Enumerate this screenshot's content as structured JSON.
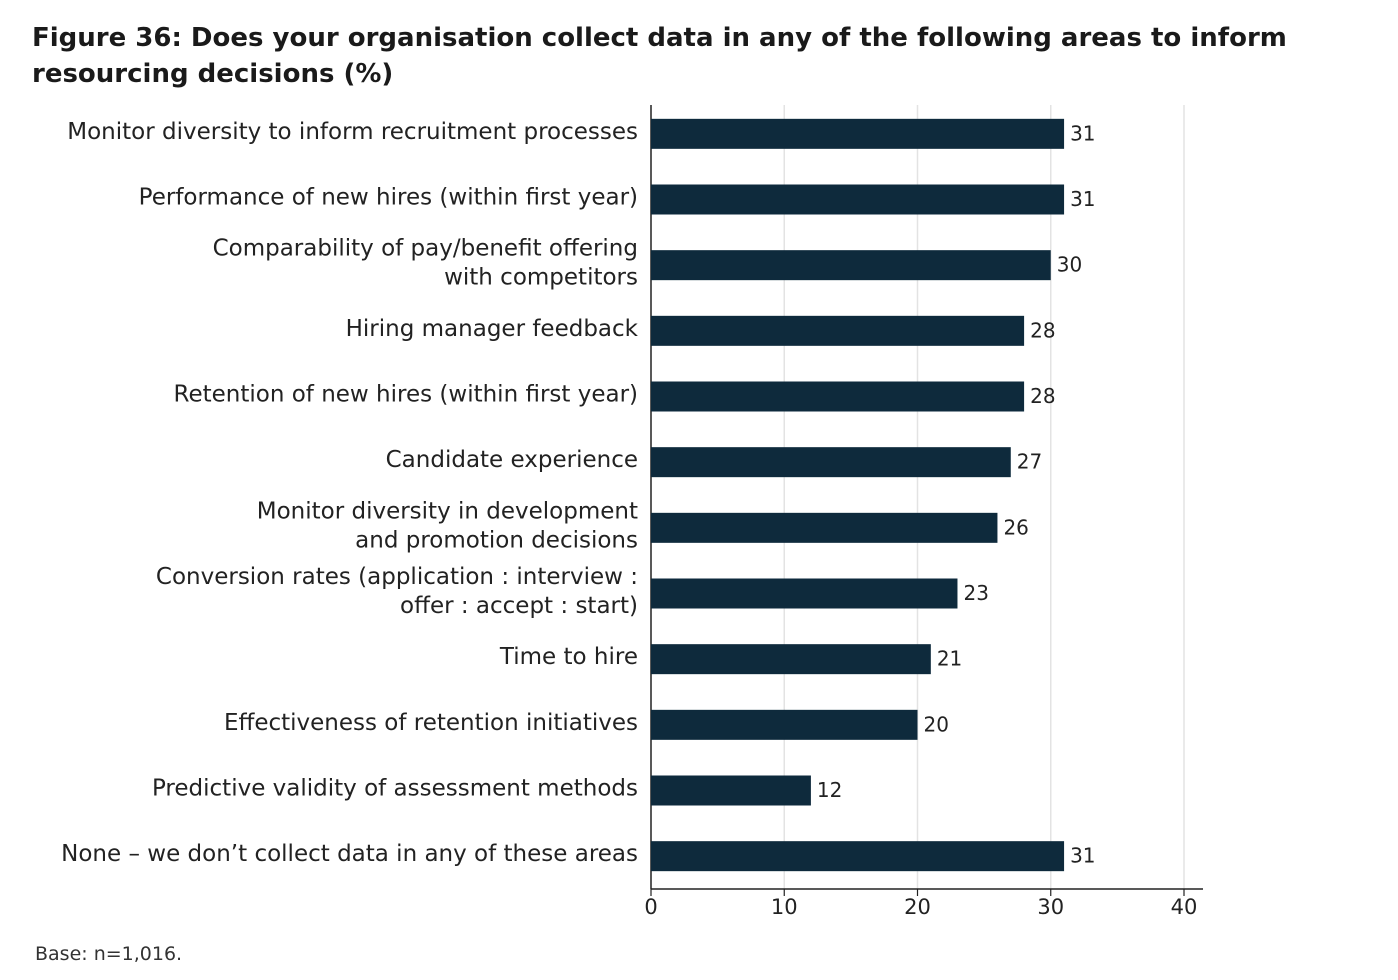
{
  "chart_data": {
    "type": "bar",
    "orientation": "horizontal",
    "title": "Figure 36: Does your organisation collect data in any of the following areas to inform resourcing decisions (%)",
    "categories": [
      "Monitor diversity to inform recruitment processes",
      "Performance of new hires (within first year)",
      "Comparability of pay/benefit offering\nwith competitors",
      "Hiring manager feedback",
      "Retention of new hires (within first year)",
      "Candidate experience",
      "Monitor diversity in development\nand promotion decisions",
      "Conversion rates (application : interview :\noffer : accept : start)",
      "Time to hire",
      "Effectiveness of retention initiatives",
      "Predictive validity of assessment methods",
      "None – we don’t collect data in any of these areas"
    ],
    "values": [
      31,
      31,
      30,
      28,
      28,
      27,
      26,
      23,
      21,
      20,
      12,
      31
    ],
    "color": "#0e2a3c",
    "xlim": [
      0,
      40
    ],
    "xticks": [
      0,
      10,
      20,
      30,
      40
    ],
    "grid": true,
    "footnote": "Base: n=1,016."
  }
}
